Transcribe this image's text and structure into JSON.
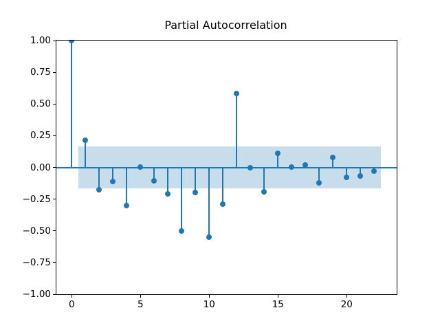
{
  "figure": {
    "background": "#ffffff"
  },
  "chart_data": {
    "type": "stem",
    "title": "Partial Autocorrelation",
    "xlabel": "",
    "ylabel": "",
    "grid": false,
    "legend": false,
    "x": [
      0,
      1,
      2,
      3,
      4,
      5,
      6,
      7,
      8,
      9,
      10,
      11,
      12,
      13,
      14,
      15,
      16,
      17,
      18,
      19,
      20,
      21,
      22
    ],
    "values": [
      1.0,
      0.215,
      -0.175,
      -0.11,
      -0.3,
      0.005,
      -0.105,
      -0.21,
      -0.5,
      -0.2,
      -0.55,
      -0.29,
      0.585,
      0.0,
      -0.19,
      0.11,
      0.005,
      0.02,
      -0.12,
      0.08,
      -0.08,
      -0.07,
      -0.03
    ],
    "xlim": [
      -1.115,
      23.635
    ],
    "ylim": [
      -1.0,
      1.0
    ],
    "x_ticks": [
      0,
      5,
      10,
      15,
      20
    ],
    "x_tick_labels": [
      "0",
      "5",
      "10",
      "15",
      "20"
    ],
    "y_ticks": [
      1.0,
      0.75,
      0.5,
      0.25,
      0.0,
      -0.25,
      -0.5,
      -0.75,
      -1.0
    ],
    "y_tick_labels": [
      "1.00",
      "0.75",
      "0.50",
      "0.25",
      "0.00",
      "−0.25",
      "−0.50",
      "−0.75",
      "−1.00"
    ],
    "confidence_interval": {
      "x_start": 0.5,
      "x_end": 22.5,
      "upper": 0.164,
      "lower": -0.164
    },
    "colors": {
      "stem": "#1f77b4",
      "marker": "#1f77b4",
      "band": "rgba(31,119,180,0.25)",
      "axis": "#000000",
      "background": "#ffffff"
    }
  }
}
